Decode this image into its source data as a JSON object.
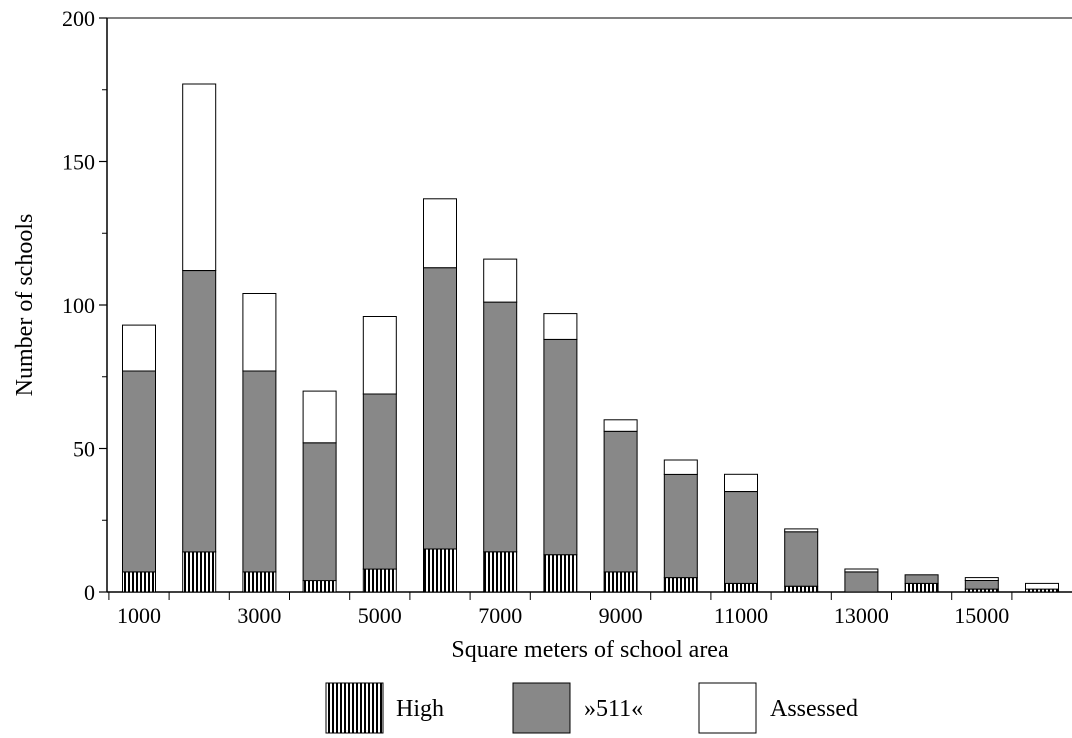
{
  "chart_data": {
    "type": "bar",
    "stacked": true,
    "title": "",
    "xlabel": "Square meters of school area",
    "ylabel": "Number of schools",
    "ylim": [
      0,
      200
    ],
    "yticks": [
      0,
      50,
      100,
      150,
      200
    ],
    "xlim": [
      500,
      16500
    ],
    "xticks": [
      1000,
      3000,
      5000,
      7000,
      9000,
      11000,
      13000,
      15000
    ],
    "x": [
      1000,
      2000,
      3000,
      4000,
      5000,
      6000,
      7000,
      8000,
      9000,
      10000,
      11000,
      12000,
      13000,
      14000,
      15000,
      16000
    ],
    "series": [
      {
        "name": "High",
        "values": [
          7,
          14,
          7,
          4,
          8,
          15,
          14,
          13,
          7,
          5,
          3,
          2,
          0,
          3,
          1,
          1
        ]
      },
      {
        "name": "»511«",
        "values": [
          70,
          98,
          70,
          48,
          61,
          98,
          87,
          75,
          49,
          36,
          32,
          19,
          7,
          3,
          3,
          0
        ]
      },
      {
        "name": "Assessed",
        "values": [
          16,
          65,
          27,
          18,
          27,
          24,
          15,
          9,
          4,
          5,
          6,
          1,
          1,
          0,
          1,
          2
        ]
      }
    ],
    "colors": {
      "High": "#000000",
      "»511«": "#888888",
      "Assessed": "#ffffff"
    },
    "grid": false,
    "legend": "bottom"
  }
}
